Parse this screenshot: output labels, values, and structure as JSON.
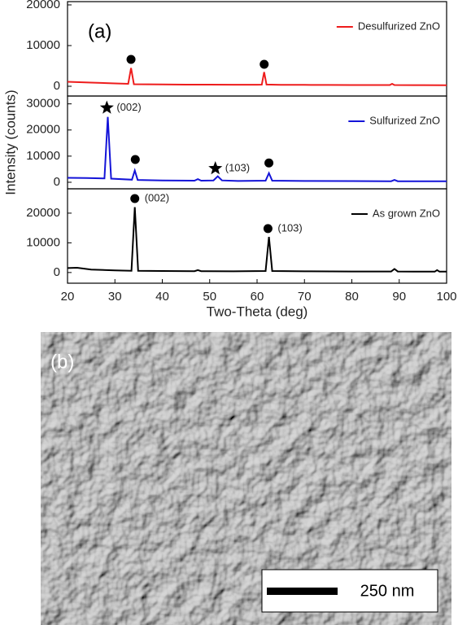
{
  "figure_labels": [
    "(a)",
    "(b)"
  ],
  "chart_data": [
    {
      "type": "line",
      "legend": "upper right",
      "x": [
        20,
        25,
        30,
        32.8,
        33.4,
        34,
        40,
        45,
        50,
        55,
        60,
        61,
        61.5,
        62,
        65,
        70,
        75,
        80,
        85,
        88,
        88.5,
        89,
        95,
        100
      ],
      "series": [
        {
          "name": "Desulfurized ZnO",
          "color": "#ee1c1c",
          "values": [
            1100,
            900,
            700,
            600,
            4500,
            500,
            450,
            400,
            400,
            380,
            380,
            400,
            3500,
            420,
            350,
            330,
            320,
            300,
            300,
            300,
            600,
            300,
            280,
            250
          ]
        }
      ],
      "xlim": [
        20,
        100
      ],
      "ylim": [
        -2400,
        20800
      ],
      "yticks": [
        0,
        10000,
        20000
      ],
      "annotations": [
        {
          "x": 33.4,
          "y": 6600,
          "marker": "circle"
        },
        {
          "x": 61.5,
          "y": 5400,
          "marker": "circle"
        }
      ]
    },
    {
      "type": "line",
      "legend": "upper right",
      "ylabel": "Intensity (counts)",
      "x": [
        20,
        24,
        27.8,
        28.5,
        29.2,
        33.6,
        34.2,
        34.8,
        40,
        46.8,
        47.5,
        48.2,
        50.8,
        51.7,
        52.6,
        56,
        61.8,
        62.5,
        63.2,
        70,
        80,
        88.3,
        89,
        89.7,
        95,
        100
      ],
      "series": [
        {
          "name": "Sulfurized ZnO",
          "color": "#1414d8",
          "values": [
            1700,
            1600,
            1500,
            25000,
            1400,
            1000,
            4500,
            900,
            700,
            600,
            1200,
            600,
            700,
            2300,
            700,
            500,
            600,
            3500,
            600,
            500,
            450,
            400,
            900,
            400,
            400,
            350
          ]
        }
      ],
      "xlim": [
        20,
        100
      ],
      "ylim": [
        -2500,
        33000
      ],
      "yticks": [
        0,
        10000,
        20000,
        30000
      ],
      "annotations": [
        {
          "x": 28.3,
          "y": 28500,
          "marker": "star",
          "label": "(002)"
        },
        {
          "x": 34.3,
          "y": 8700,
          "marker": "circle"
        },
        {
          "x": 51.2,
          "y": 5300,
          "marker": "star",
          "label": "(103)"
        },
        {
          "x": 62.5,
          "y": 7400,
          "marker": "circle"
        }
      ]
    },
    {
      "type": "line",
      "legend": "upper right",
      "xlabel": "Two-Theta (deg)",
      "x": [
        20,
        22,
        25,
        30,
        33.5,
        34.2,
        34.9,
        40,
        46.8,
        47.5,
        48.2,
        55,
        61.8,
        62.5,
        63.2,
        70,
        80,
        88.3,
        89,
        89.7,
        95,
        97.5,
        98,
        98.5,
        100
      ],
      "series": [
        {
          "name": "As grown ZnO",
          "color": "#000000",
          "values": [
            1500,
            1600,
            1000,
            700,
            600,
            22000,
            600,
            500,
            450,
            800,
            450,
            400,
            500,
            12000,
            500,
            400,
            350,
            350,
            1200,
            350,
            300,
            300,
            800,
            300,
            300
          ]
        }
      ],
      "xlim": [
        20,
        100
      ],
      "ylim": [
        -3600,
        28200
      ],
      "yticks": [
        0,
        10000,
        20000
      ],
      "xticks": [
        20,
        30,
        40,
        50,
        60,
        70,
        80,
        90,
        100
      ],
      "annotations": [
        {
          "x": 34.2,
          "y": 24900,
          "marker": "circle",
          "label": "(002)"
        },
        {
          "x": 62.3,
          "y": 14800,
          "marker": "circle",
          "label": "(103)"
        }
      ]
    }
  ],
  "scale_bar": {
    "label": "250 nm"
  }
}
